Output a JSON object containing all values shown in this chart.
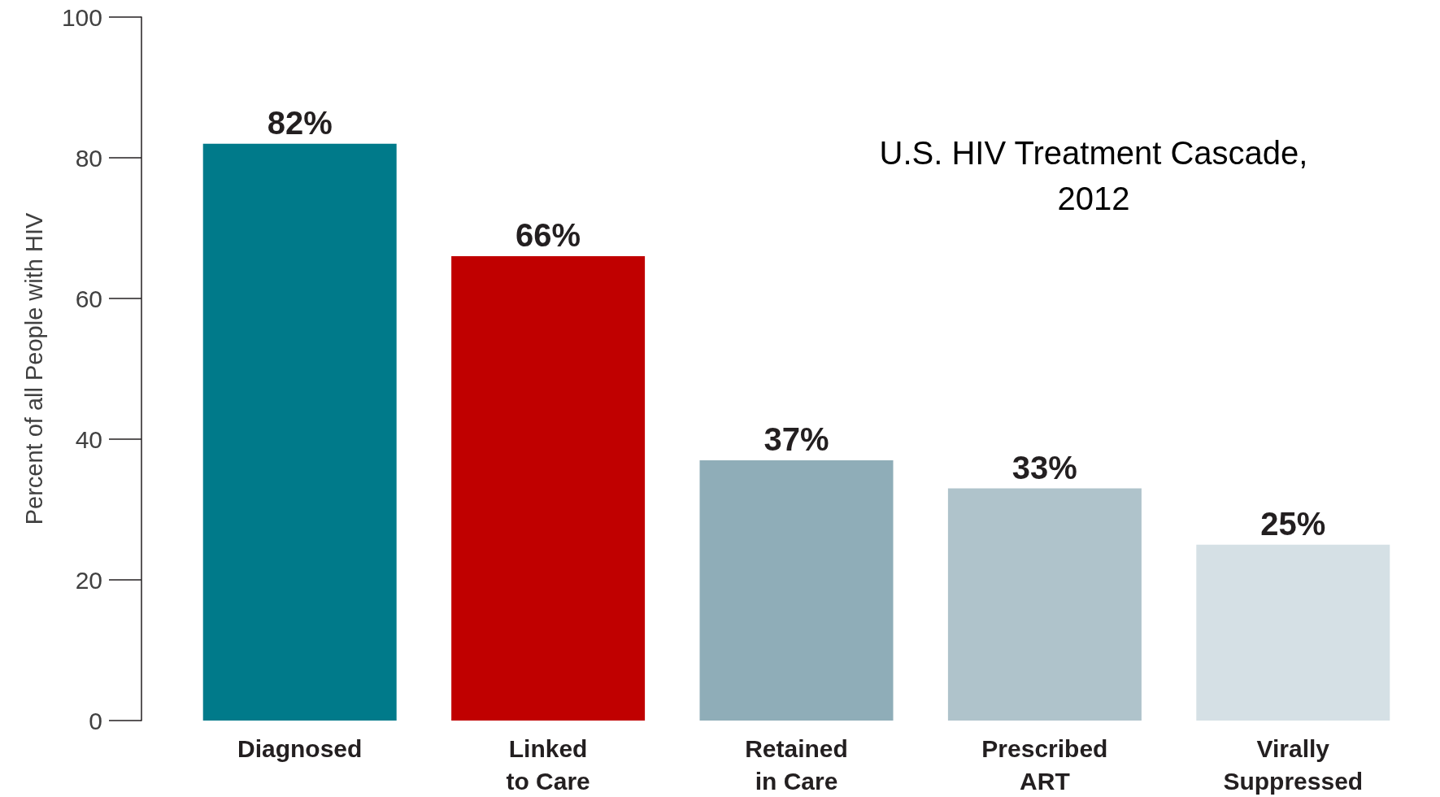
{
  "chart_data": {
    "type": "bar",
    "title": "U.S. HIV Treatment Cascade,\n2012",
    "ylabel": "Percent of all People with HIV",
    "categories": [
      "Diagnosed",
      "Linked\nto Care",
      "Retained\nin Care",
      "Prescribed\nART",
      "Virally\nSuppressed"
    ],
    "values": [
      82,
      66,
      37,
      33,
      25
    ],
    "colors": [
      "#007a8a",
      "#c00000",
      "#8fadb8",
      "#afc3cb",
      "#d5e0e5"
    ],
    "value_labels": [
      "82%",
      "66%",
      "37%",
      "33%",
      "25%"
    ],
    "ylim": [
      0,
      100
    ],
    "yticks": [
      0,
      20,
      40,
      60,
      80,
      100
    ],
    "grid": false
  }
}
